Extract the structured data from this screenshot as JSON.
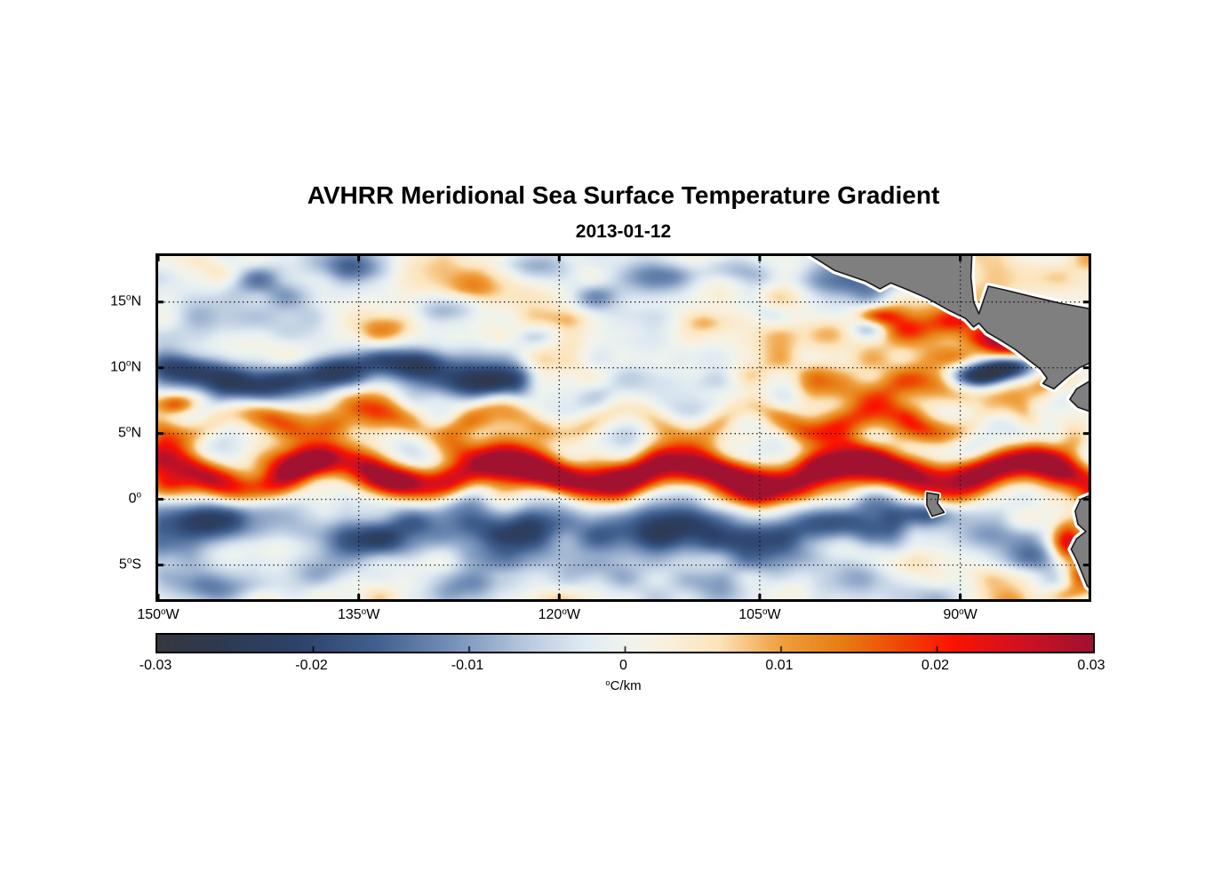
{
  "figure": {
    "title": "AVHRR Meridional Sea Surface Temperature Gradient",
    "date": "2013-01-12"
  },
  "chart_data": {
    "type": "heatmap",
    "title": "AVHRR Meridional Sea Surface Temperature Gradient",
    "subtitle": "2013-01-12",
    "variable": "meridional sea surface temperature gradient",
    "units": "°C/km",
    "extent": {
      "lon": [
        -150.2,
        -80.2
      ],
      "lat": [
        18.7,
        -7.8
      ]
    },
    "xticks": [
      {
        "value": -150,
        "pre": "150",
        "sup": "o",
        "post": "W"
      },
      {
        "value": -135,
        "pre": "135",
        "sup": "o",
        "post": "W"
      },
      {
        "value": -120,
        "pre": "120",
        "sup": "o",
        "post": "W"
      },
      {
        "value": -105,
        "pre": "105",
        "sup": "o",
        "post": "W"
      },
      {
        "value": -90,
        "pre": "90",
        "sup": "o",
        "post": "W"
      }
    ],
    "yticks": [
      {
        "value": 15,
        "pre": "15",
        "sup": "o",
        "post": "N"
      },
      {
        "value": 10,
        "pre": "10",
        "sup": "o",
        "post": "N"
      },
      {
        "value": 5,
        "pre": "5",
        "sup": "o",
        "post": "N"
      },
      {
        "value": 0,
        "pre": "0",
        "sup": "o",
        "post": ""
      },
      {
        "value": -5,
        "pre": "5",
        "sup": "o",
        "post": "S"
      }
    ],
    "grid": {
      "lon": [
        -135,
        -120,
        -105,
        -90
      ],
      "lat": [
        15,
        10,
        5,
        0,
        -5
      ],
      "style": "dotted"
    },
    "colorbar": {
      "min": -0.03,
      "max": 0.03,
      "ticks": [
        {
          "value": -0.03,
          "label": "-0.03"
        },
        {
          "value": -0.02,
          "label": "-0.02"
        },
        {
          "value": -0.01,
          "label": "-0.01"
        },
        {
          "value": 0,
          "label": "0"
        },
        {
          "value": 0.01,
          "label": "0.01"
        },
        {
          "value": 0.02,
          "label": "0.02"
        },
        {
          "value": 0.03,
          "label": "0.03"
        }
      ],
      "unit_sup": "o",
      "unit_main": "C/km"
    },
    "colormap": [
      [
        -0.03,
        "#35383e"
      ],
      [
        -0.026,
        "#2e3a51"
      ],
      [
        -0.021,
        "#2d436b"
      ],
      [
        -0.016,
        "#41608f"
      ],
      [
        -0.011,
        "#7792ba"
      ],
      [
        -0.006,
        "#bccde1"
      ],
      [
        -0.0025,
        "#e1ebf2"
      ],
      [
        0.0,
        "#eff4ee"
      ],
      [
        0.0025,
        "#f9f1e0"
      ],
      [
        0.006,
        "#fce4ba"
      ],
      [
        0.01,
        "#f0a03e"
      ],
      [
        0.014,
        "#e87c12"
      ],
      [
        0.0175,
        "#ef4a06"
      ],
      [
        0.021,
        "#fb1400"
      ],
      [
        0.025,
        "#d61120"
      ],
      [
        0.03,
        "#a01230"
      ]
    ],
    "land": {
      "fill": "#7f7f7f",
      "outline": "#1a1a1a",
      "halo": "#ffffff",
      "polygons": [
        {
          "name": "central-america",
          "pts": [
            [
              -102.2,
              19.2
            ],
            [
              -99.4,
              17.4
            ],
            [
              -97.1,
              16.6
            ],
            [
              -96.0,
              16.0
            ],
            [
              -95.2,
              16.45
            ],
            [
              -94.1,
              16.0
            ],
            [
              -92.5,
              15.3
            ],
            [
              -90.9,
              14.4
            ],
            [
              -89.6,
              13.75
            ],
            [
              -89.0,
              13.1
            ],
            [
              -88.6,
              13.4
            ],
            [
              -88.0,
              12.7
            ],
            [
              -87.0,
              12.1
            ],
            [
              -85.9,
              11.4
            ],
            [
              -84.9,
              10.6
            ],
            [
              -84.0,
              9.9
            ],
            [
              -83.5,
              9.2
            ],
            [
              -83.8,
              8.8
            ],
            [
              -83.0,
              8.4
            ],
            [
              -82.1,
              9.2
            ],
            [
              -81.1,
              10.0
            ],
            [
              -79.8,
              10.6
            ],
            [
              -79.8,
              14.4
            ],
            [
              -82.5,
              14.9
            ],
            [
              -84.6,
              15.4
            ],
            [
              -86.6,
              15.9
            ],
            [
              -87.9,
              16.2
            ],
            [
              -88.6,
              14.1
            ],
            [
              -89.0,
              15.0
            ],
            [
              -89.2,
              16.9
            ],
            [
              -89.1,
              19.2
            ]
          ]
        },
        {
          "name": "panama",
          "pts": [
            [
              -79.8,
              9.3
            ],
            [
              -81.3,
              8.4
            ],
            [
              -81.8,
              7.6
            ],
            [
              -81.2,
              7.0
            ],
            [
              -79.8,
              6.5
            ]
          ]
        },
        {
          "name": "south-america",
          "pts": [
            [
              -79.8,
              0.5
            ],
            [
              -81.0,
              0.0
            ],
            [
              -81.4,
              -0.9
            ],
            [
              -81.2,
              -1.9
            ],
            [
              -80.6,
              -2.45
            ],
            [
              -81.3,
              -3.0
            ],
            [
              -81.7,
              -3.8
            ],
            [
              -81.3,
              -4.6
            ],
            [
              -80.9,
              -5.6
            ],
            [
              -80.5,
              -6.6
            ],
            [
              -79.8,
              -7.2
            ],
            [
              -79.8,
              -8.2
            ]
          ]
        },
        {
          "name": "galapagos",
          "pts": [
            [
              -92.5,
              0.5
            ],
            [
              -91.6,
              0.35
            ],
            [
              -91.7,
              -0.3
            ],
            [
              -91.2,
              -1.0
            ],
            [
              -92.1,
              -1.3
            ],
            [
              -92.5,
              -0.45
            ]
          ]
        }
      ]
    },
    "field": {
      "bands": [
        {
          "lat": 1.9,
          "sy": 1.0,
          "amp": 0.026,
          "lon0": -152,
          "lon1": -78,
          "ma": 1.1,
          "mw": 13,
          "mp": 0.5
        },
        {
          "lat": 5.9,
          "sy": 0.85,
          "amp": 0.011,
          "lon0": -152,
          "lon1": -83,
          "ma": 0.9,
          "mw": 9.5,
          "mp": 2.2
        },
        {
          "lat": 9.4,
          "sy": 1.15,
          "amp": -0.018,
          "lon0": -152,
          "lon1": -121,
          "ma": 0.7,
          "mw": 17,
          "mp": 1.0
        },
        {
          "lat": -2.4,
          "sy": 1.5,
          "amp": -0.013,
          "lon0": -152,
          "lon1": -93,
          "ma": 0.9,
          "mw": 15,
          "mp": 4.0
        },
        {
          "lat": 8.3,
          "sy": 0.9,
          "amp": 0.01,
          "lon0": -103,
          "lon1": -82,
          "ma": 0.5,
          "mw": 8,
          "mp": 0
        }
      ],
      "blobs": [
        [
          -147.5,
          1.3,
          1.6,
          0.8,
          0.014
        ],
        [
          -140.0,
          2.8,
          1.4,
          0.8,
          0.012
        ],
        [
          -133.0,
          1.5,
          1.8,
          0.8,
          0.013
        ],
        [
          -127.5,
          3.8,
          1.3,
          0.9,
          0.014
        ],
        [
          -122.5,
          2.0,
          2.0,
          0.9,
          0.015
        ],
        [
          -116.0,
          1.6,
          2.2,
          0.9,
          0.013
        ],
        [
          -110.0,
          2.3,
          1.5,
          0.8,
          0.012
        ],
        [
          -105.5,
          1.2,
          2.0,
          1.0,
          0.016
        ],
        [
          -99.0,
          2.0,
          2.2,
          1.0,
          0.014
        ],
        [
          -94.0,
          2.5,
          1.8,
          0.9,
          0.015
        ],
        [
          -89.0,
          2.2,
          2.0,
          0.9,
          0.014
        ],
        [
          -84.0,
          2.5,
          1.8,
          1.0,
          0.013
        ],
        [
          -81.5,
          4.5,
          1.0,
          0.9,
          0.012
        ],
        [
          -101.0,
          5.8,
          2.0,
          0.8,
          0.008
        ],
        [
          -93.0,
          5.5,
          2.0,
          0.8,
          0.008
        ],
        [
          -148.0,
          9.9,
          1.8,
          0.8,
          -0.01
        ],
        [
          -142.5,
          8.9,
          2.0,
          0.8,
          -0.01
        ],
        [
          -136.5,
          9.6,
          1.8,
          0.9,
          -0.011
        ],
        [
          -130.5,
          10.3,
          1.6,
          0.8,
          -0.01
        ],
        [
          -126.0,
          9.0,
          1.5,
          0.8,
          -0.009
        ],
        [
          -143.0,
          16.6,
          1.8,
          0.9,
          -0.011
        ],
        [
          -135.5,
          17.6,
          2.0,
          0.8,
          -0.012
        ],
        [
          -128.5,
          14.6,
          1.5,
          0.8,
          -0.009
        ],
        [
          -122.0,
          17.9,
          2.0,
          0.8,
          -0.013
        ],
        [
          -117.5,
          15.3,
          1.6,
          0.8,
          -0.011
        ],
        [
          -112.0,
          16.9,
          1.8,
          0.9,
          -0.014
        ],
        [
          -107.5,
          17.6,
          1.6,
          0.8,
          -0.012
        ],
        [
          -98.5,
          16.6,
          2.4,
          1.0,
          -0.013
        ],
        [
          -91.5,
          17.2,
          1.6,
          0.8,
          -0.01
        ],
        [
          -121.5,
          12.4,
          1.4,
          0.7,
          -0.008
        ],
        [
          -104.5,
          14.1,
          1.2,
          0.7,
          -0.007
        ],
        [
          -104.5,
          16.9,
          1.4,
          0.8,
          -0.01
        ],
        [
          -133.0,
          13.1,
          1.3,
          0.7,
          0.01
        ],
        [
          -126.5,
          15.9,
          1.2,
          0.6,
          0.008
        ],
        [
          -119.5,
          13.7,
          1.2,
          0.6,
          0.007
        ],
        [
          -109.0,
          13.4,
          1.1,
          0.6,
          0.008
        ],
        [
          -99.5,
          12.6,
          1.5,
          0.8,
          0.012
        ],
        [
          -96.2,
          13.9,
          1.2,
          0.55,
          0.022
        ],
        [
          -94.0,
          12.9,
          1.3,
          0.7,
          0.013
        ],
        [
          -90.5,
          13.6,
          1.4,
          0.7,
          0.016
        ],
        [
          -88.0,
          12.3,
          1.3,
          0.6,
          0.018
        ],
        [
          -86.3,
          11.4,
          1.3,
          0.6,
          0.022
        ],
        [
          -90.0,
          10.8,
          1.3,
          0.6,
          0.013
        ],
        [
          -86.3,
          10.1,
          1.7,
          0.75,
          -0.03
        ],
        [
          -88.8,
          9.3,
          1.3,
          0.6,
          -0.018
        ],
        [
          -96.8,
          12.9,
          1.0,
          0.6,
          -0.012
        ],
        [
          -146.0,
          -1.9,
          2.2,
          1.0,
          -0.009
        ],
        [
          -134.0,
          -3.1,
          2.4,
          1.0,
          -0.01
        ],
        [
          -122.0,
          -2.1,
          2.0,
          0.9,
          -0.008
        ],
        [
          -111.5,
          -2.6,
          2.2,
          1.0,
          -0.01
        ],
        [
          -99.0,
          -2.1,
          2.4,
          1.0,
          -0.011
        ],
        [
          -92.6,
          -1.1,
          1.4,
          0.7,
          -0.013
        ],
        [
          -88.0,
          -2.8,
          1.6,
          0.8,
          -0.008
        ],
        [
          -84.8,
          -4.3,
          1.5,
          0.9,
          -0.009
        ],
        [
          -146.0,
          -6.6,
          2.0,
          0.9,
          -0.008
        ],
        [
          -138.0,
          -5.3,
          1.8,
          0.8,
          -0.007
        ],
        [
          -128.0,
          -6.9,
          1.8,
          0.9,
          -0.008
        ],
        [
          -117.5,
          -5.6,
          1.6,
          0.8,
          -0.006
        ],
        [
          -108.0,
          -7.1,
          1.8,
          0.9,
          -0.007
        ],
        [
          -98.0,
          -5.9,
          1.8,
          0.9,
          -0.009
        ],
        [
          -90.0,
          -7.6,
          1.8,
          0.9,
          -0.008
        ],
        [
          -142.0,
          -7.9,
          1.4,
          0.7,
          0.007
        ],
        [
          -120.0,
          -7.7,
          1.4,
          0.7,
          0.006
        ],
        [
          -103.0,
          -7.3,
          1.3,
          0.7,
          0.007
        ],
        [
          -94.0,
          -4.9,
          1.3,
          0.7,
          0.008
        ],
        [
          -86.8,
          -7.9,
          1.4,
          0.8,
          0.011
        ],
        [
          -81.9,
          -3.4,
          0.9,
          1.1,
          0.028
        ],
        [
          -80.9,
          -5.9,
          0.8,
          0.8,
          0.018
        ],
        [
          -82.0,
          -7.5,
          1.1,
          0.6,
          0.012
        ],
        [
          -81.0,
          -8.3,
          1.3,
          0.7,
          -0.016
        ],
        [
          -149.6,
          0.7,
          1.2,
          0.8,
          0.016
        ],
        [
          -148.8,
          7.2,
          1.1,
          0.55,
          0.018
        ],
        [
          -82.5,
          17.5,
          4.0,
          2.5,
          0.004
        ]
      ],
      "noise": [
        {
          "wl": 5.2,
          "amp": 0.0068,
          "seed": 11
        },
        {
          "wl": 2.3,
          "amp": 0.0042,
          "seed": 29
        }
      ]
    }
  }
}
